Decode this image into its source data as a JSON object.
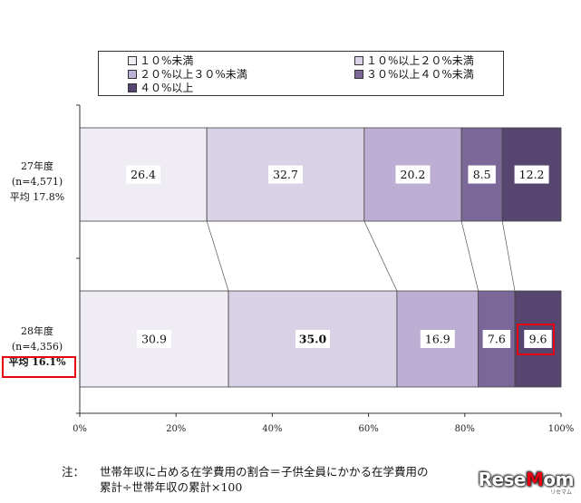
{
  "chart_data": {
    "type": "bar",
    "orientation": "horizontal-stacked-100",
    "categories": [
      {
        "year": "27年度",
        "n": "(n=4,571)",
        "avg": "平均 17.8%"
      },
      {
        "year": "28年度",
        "n": "(n=4,356)",
        "avg": "平均 16.1%"
      }
    ],
    "series": [
      {
        "name": "１０%未満",
        "color": "#efecf4",
        "values": [
          26.4,
          30.9
        ]
      },
      {
        "name": "１０%以上２０%未満",
        "color": "#d9d1e6",
        "values": [
          32.7,
          35.0
        ]
      },
      {
        "name": "２０%以上３０%未満",
        "color": "#bdaed3",
        "values": [
          20.2,
          16.9
        ]
      },
      {
        "name": "３０%以上４０%未満",
        "color": "#7b6898",
        "values": [
          8.5,
          7.6
        ]
      },
      {
        "name": "４０%以上",
        "color": "#56456f",
        "values": [
          12.2,
          9.6
        ]
      }
    ],
    "value_labels": [
      [
        "26.4",
        "32.7",
        "20.2",
        "8.5",
        "12.2"
      ],
      [
        "30.9",
        "35.0",
        "16.9",
        "7.6",
        "9.6"
      ]
    ],
    "xticks": [
      "0%",
      "20%",
      "40%",
      "60%",
      "80%",
      "100%"
    ],
    "xlim": [
      0,
      100
    ],
    "grid": false,
    "legend_position": "top",
    "highlight_color": "#e60012"
  },
  "note": {
    "prefix": "注：",
    "line1": "世帯年収に占める在学費用の割合＝子供全員にかかる在学費用の",
    "line2": "累計÷世帯年収の累計×100"
  },
  "logo": {
    "text_a": "Rese",
    "text_b": "M",
    "text_c": "om",
    "sub": "リセマム"
  }
}
